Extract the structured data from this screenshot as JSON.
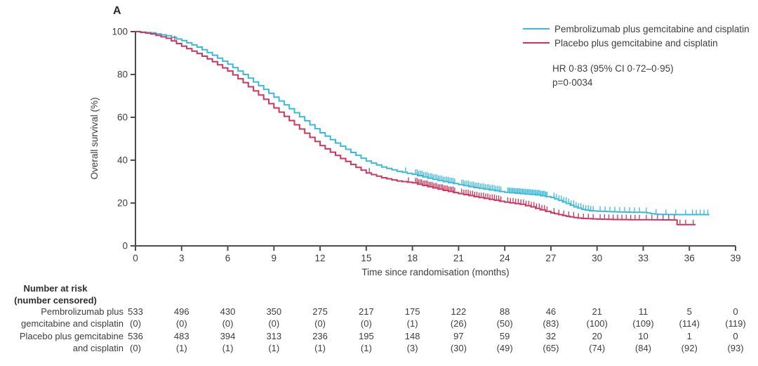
{
  "panel_label": "A",
  "colors": {
    "pembro": "#3bb9d8",
    "placebo": "#c9375f",
    "text": "#3d3d3d",
    "axis": "#4d4d4d"
  },
  "legend": {
    "items": [
      {
        "label": "Pembrolizumab plus gemcitabine and cisplatin",
        "color_key": "pembro"
      },
      {
        "label": "Placebo plus gemcitabine and cisplatin",
        "color_key": "placebo"
      }
    ]
  },
  "annotation": {
    "line1": "HR 0·83 (95% CI 0·72–0·95)",
    "line2": "p=0·0034"
  },
  "chart_data": {
    "type": "line",
    "subtype": "kaplan-meier-step",
    "title": "",
    "xlabel": "Time since randomisation (months)",
    "ylabel": "Overall survival (%)",
    "xlim": [
      0,
      39
    ],
    "ylim": [
      0,
      100
    ],
    "xticks": [
      0,
      3,
      6,
      9,
      12,
      15,
      18,
      21,
      24,
      27,
      30,
      33,
      36,
      39
    ],
    "yticks": [
      0,
      20,
      40,
      60,
      80,
      100
    ],
    "grid": false,
    "legend_position": "top-right",
    "series": [
      {
        "name": "Pembrolizumab plus gemcitabine and cisplatin",
        "color_key": "pembro",
        "end": 37.3,
        "points": [
          [
            0,
            100
          ],
          [
            1,
            99.4
          ],
          [
            2,
            98.1
          ],
          [
            3,
            95.8
          ],
          [
            4,
            92.8
          ],
          [
            5,
            89
          ],
          [
            6,
            84.8
          ],
          [
            7,
            80
          ],
          [
            8,
            74.8
          ],
          [
            9,
            69.4
          ],
          [
            10,
            64
          ],
          [
            11,
            58.4
          ],
          [
            12,
            52.8
          ],
          [
            13,
            48
          ],
          [
            14,
            43.6
          ],
          [
            15,
            39.6
          ],
          [
            16,
            36.8
          ],
          [
            17,
            34.8
          ],
          [
            18,
            33.4
          ],
          [
            19,
            31.6
          ],
          [
            20,
            30
          ],
          [
            21,
            28.6
          ],
          [
            22,
            27.2
          ],
          [
            23,
            26.1
          ],
          [
            24,
            25
          ],
          [
            25,
            24.4
          ],
          [
            26,
            23.8
          ],
          [
            27,
            22.6
          ],
          [
            27.5,
            21.2
          ],
          [
            28,
            19.8
          ],
          [
            28.5,
            18.2
          ],
          [
            29,
            17
          ],
          [
            29.5,
            16.4
          ],
          [
            30,
            16.2
          ],
          [
            31,
            15.9
          ],
          [
            32,
            15.7
          ],
          [
            33,
            15.6
          ],
          [
            33.5,
            15
          ],
          [
            34,
            14.7
          ],
          [
            35,
            14.6
          ],
          [
            37.3,
            14.6
          ]
        ],
        "censor_intervals": [
          {
            "from": 15,
            "to": 18,
            "count": 1
          },
          {
            "from": 18,
            "to": 21,
            "count": 25
          },
          {
            "from": 21,
            "to": 24,
            "count": 24
          },
          {
            "from": 24,
            "to": 27,
            "count": 33
          },
          {
            "from": 27,
            "to": 30,
            "count": 17
          },
          {
            "from": 30,
            "to": 33,
            "count": 9
          },
          {
            "from": 33,
            "to": 36,
            "count": 5
          },
          {
            "from": 36,
            "to": 39,
            "count": 5
          }
        ]
      },
      {
        "name": "Placebo plus gemcitabine and cisplatin",
        "color_key": "placebo",
        "end": 36.4,
        "points": [
          [
            0,
            100
          ],
          [
            1,
            98.9
          ],
          [
            2,
            96.9
          ],
          [
            3,
            93.2
          ],
          [
            4,
            89.8
          ],
          [
            5,
            86
          ],
          [
            6,
            81.6
          ],
          [
            7,
            76.2
          ],
          [
            8,
            70.4
          ],
          [
            9,
            64.4
          ],
          [
            10,
            58.5
          ],
          [
            11,
            52.6
          ],
          [
            12,
            46.8
          ],
          [
            13,
            42.2
          ],
          [
            14,
            38
          ],
          [
            15,
            34
          ],
          [
            16,
            31.8
          ],
          [
            17,
            30.3
          ],
          [
            18,
            29.4
          ],
          [
            19,
            27.6
          ],
          [
            20,
            25.9
          ],
          [
            21,
            24.4
          ],
          [
            22,
            23
          ],
          [
            23,
            21.7
          ],
          [
            24,
            20.4
          ],
          [
            25,
            19.4
          ],
          [
            25.7,
            18.2
          ],
          [
            26.3,
            16.8
          ],
          [
            27,
            15.4
          ],
          [
            27.5,
            14.6
          ],
          [
            28,
            13.8
          ],
          [
            28.5,
            13.2
          ],
          [
            29,
            12.8
          ],
          [
            30,
            12.5
          ],
          [
            31,
            12.3
          ],
          [
            33,
            12.2
          ],
          [
            35.1,
            12.1
          ],
          [
            35.2,
            9.9
          ],
          [
            36.4,
            9.9
          ]
        ],
        "censor_intervals": [
          {
            "from": 0,
            "to": 3,
            "count": 1
          },
          {
            "from": 15,
            "to": 18,
            "count": 2
          },
          {
            "from": 18,
            "to": 21,
            "count": 27
          },
          {
            "from": 21,
            "to": 24,
            "count": 19
          },
          {
            "from": 24,
            "to": 27,
            "count": 16
          },
          {
            "from": 27,
            "to": 30,
            "count": 9
          },
          {
            "from": 30,
            "to": 33,
            "count": 10
          },
          {
            "from": 33,
            "to": 36,
            "count": 8
          },
          {
            "from": 36,
            "to": 39,
            "count": 1
          }
        ]
      }
    ]
  },
  "risk_table": {
    "header_line1": "Number at risk",
    "header_line2": "(number censored)",
    "months": [
      0,
      3,
      6,
      9,
      12,
      15,
      18,
      21,
      24,
      27,
      30,
      33,
      36,
      39
    ],
    "rows": [
      {
        "label_line1": "Pembrolizumab plus",
        "label_line2": "gemcitabine and cisplatin",
        "at_risk": [
          533,
          496,
          430,
          350,
          275,
          217,
          175,
          122,
          88,
          46,
          21,
          11,
          5,
          0
        ],
        "censored": [
          0,
          0,
          0,
          0,
          0,
          0,
          1,
          26,
          50,
          83,
          100,
          109,
          114,
          119
        ]
      },
      {
        "label_line1": "Placebo plus gemcitabine",
        "label_line2": "and cisplatin",
        "at_risk": [
          536,
          483,
          394,
          313,
          236,
          195,
          148,
          97,
          59,
          32,
          20,
          10,
          1,
          0
        ],
        "censored": [
          0,
          1,
          1,
          1,
          1,
          1,
          3,
          30,
          49,
          65,
          74,
          84,
          92,
          93
        ]
      }
    ]
  }
}
